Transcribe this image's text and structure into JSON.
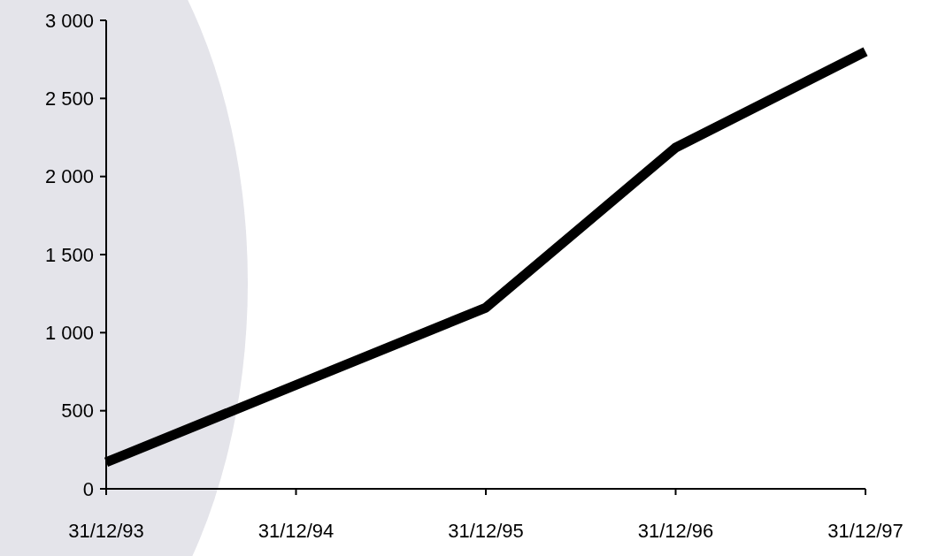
{
  "chart_data": {
    "type": "line",
    "categories": [
      "31/12/93",
      "31/12/94",
      "31/12/95",
      "31/12/96",
      "31/12/97"
    ],
    "series": [
      {
        "color": "#000000",
        "values": [
          170,
          665,
          1160,
          2185,
          2800
        ]
      }
    ],
    "ylim": [
      0,
      3000
    ],
    "yticks": [
      0,
      500,
      {
        "value": 1000,
        "label": "1 000"
      },
      {
        "value": 1500,
        "label": "1 500"
      },
      {
        "value": 2000,
        "label": "2 000"
      },
      {
        "value": 2500,
        "label": "2 500"
      },
      {
        "value": 3000,
        "label": "3 000"
      }
    ],
    "grid": false,
    "marker": "none",
    "line_style": "solid"
  }
}
